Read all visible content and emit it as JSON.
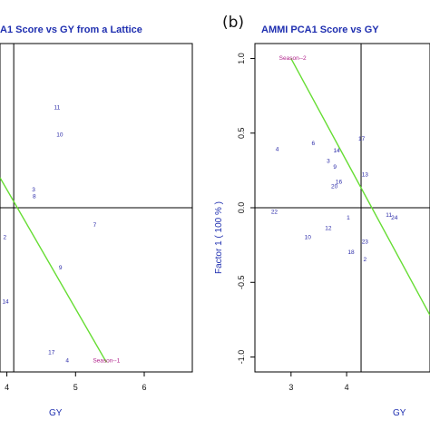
{
  "chart_data": [
    {
      "type": "scatter",
      "panel": "",
      "title": "A1 Score vs GY from a Lattice",
      "xlabel": "GY",
      "ylabel": "",
      "xlim": [
        3.9,
        6.7
      ],
      "ylim": [
        -1.2,
        1.2
      ],
      "xticks": [
        "4",
        "5",
        "6"
      ],
      "yticks": [],
      "vline_x": 4.1,
      "hline_y": 0.0,
      "points": [
        {
          "label": "11",
          "x": 4.73,
          "y": 0.72
        },
        {
          "label": "10",
          "x": 4.77,
          "y": 0.52
        },
        {
          "label": "3",
          "x": 4.39,
          "y": 0.12
        },
        {
          "label": "8",
          "x": 4.4,
          "y": 0.07
        },
        {
          "label": "7",
          "x": 5.28,
          "y": -0.14
        },
        {
          "label": "2",
          "x": 3.97,
          "y": -0.23
        },
        {
          "label": "9",
          "x": 4.78,
          "y": -0.45
        },
        {
          "label": "14",
          "x": 3.98,
          "y": -0.7
        },
        {
          "label": "17",
          "x": 4.65,
          "y": -1.07
        },
        {
          "label": "4",
          "x": 4.88,
          "y": -1.13
        }
      ],
      "environments": [
        {
          "label": "Season--1",
          "x": 5.45,
          "y": -1.13
        }
      ],
      "biplot_line": {
        "from": [
          3.9,
          0.22
        ],
        "to": [
          5.45,
          -1.13
        ]
      },
      "line_color": "#66dd33"
    },
    {
      "type": "scatter",
      "panel": "(b)",
      "title": "AMMI PCA1 Score vs GY",
      "xlabel": "GY",
      "ylabel": "Factor 1 ( 100 % )",
      "xlim": [
        2.35,
        5.5
      ],
      "ylim": [
        -1.1,
        1.1
      ],
      "xticks": [
        "3",
        "4"
      ],
      "yticks": [
        "-1.0",
        "-0.5",
        "0.0",
        "0.5",
        "1.0"
      ],
      "vline_x": 4.26,
      "hline_y": 0.0,
      "points": [
        {
          "label": "4",
          "x": 2.75,
          "y": 0.38
        },
        {
          "label": "6",
          "x": 3.4,
          "y": 0.42
        },
        {
          "label": "14",
          "x": 3.82,
          "y": 0.37
        },
        {
          "label": "17",
          "x": 4.27,
          "y": 0.45
        },
        {
          "label": "3",
          "x": 3.67,
          "y": 0.3
        },
        {
          "label": "9",
          "x": 3.79,
          "y": 0.26
        },
        {
          "label": "13",
          "x": 4.33,
          "y": 0.21
        },
        {
          "label": "16",
          "x": 3.86,
          "y": 0.16
        },
        {
          "label": "20",
          "x": 3.78,
          "y": 0.13
        },
        {
          "label": "22",
          "x": 2.7,
          "y": -0.04
        },
        {
          "label": "1",
          "x": 4.03,
          "y": -0.08
        },
        {
          "label": "12",
          "x": 3.67,
          "y": -0.15
        },
        {
          "label": "10",
          "x": 3.3,
          "y": -0.21
        },
        {
          "label": "11",
          "x": 4.76,
          "y": -0.06
        },
        {
          "label": "24",
          "x": 4.86,
          "y": -0.08
        },
        {
          "label": "23",
          "x": 4.33,
          "y": -0.24
        },
        {
          "label": "18",
          "x": 4.08,
          "y": -0.31
        },
        {
          "label": "2",
          "x": 4.33,
          "y": -0.36
        }
      ],
      "environments": [
        {
          "label": "Season--2",
          "x": 3.03,
          "y": 0.99
        }
      ],
      "biplot_line": {
        "from": [
          3.0,
          1.0
        ],
        "to": [
          5.5,
          -0.72
        ]
      },
      "line_color": "#66dd33"
    }
  ]
}
